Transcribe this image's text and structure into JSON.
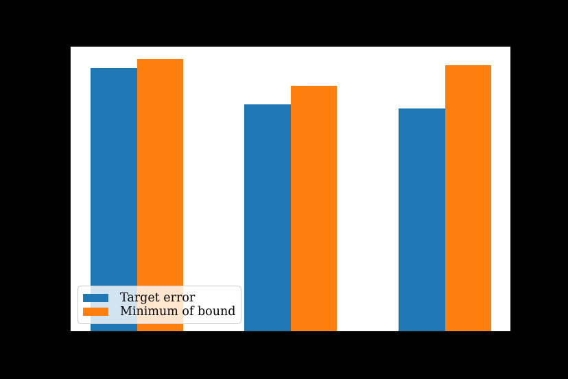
{
  "figure": {
    "background_color": "#000000",
    "plot_background_color": "#ffffff"
  },
  "chart_data": {
    "type": "bar",
    "categories": [
      "",
      "",
      ""
    ],
    "series": [
      {
        "name": "Target error",
        "color": "#1f77b4",
        "values": [
          0.925,
          0.797,
          0.783
        ]
      },
      {
        "name": "Minimum of bound",
        "color": "#ff7f0e",
        "values": [
          0.956,
          0.862,
          0.935
        ]
      }
    ],
    "title": "",
    "xlabel": "",
    "ylabel": "",
    "ylim": [
      0,
      1
    ],
    "grid": false,
    "legend_position": "lower left",
    "values_unit": "fraction of visible y-axis height (axis tick labels not visible in image)"
  }
}
